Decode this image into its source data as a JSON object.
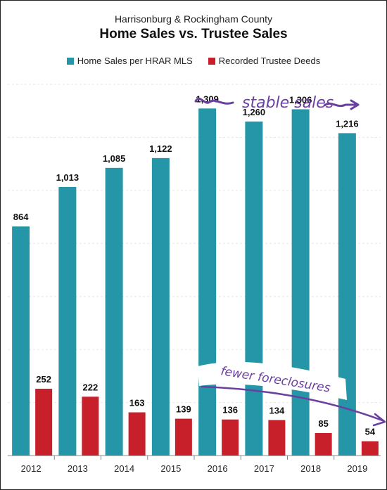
{
  "chart_data": {
    "type": "bar",
    "subtitle": "Harrisonburg & Rockingham County",
    "title": "Home Sales vs. Trustee Sales",
    "categories": [
      "2012",
      "2013",
      "2014",
      "2015",
      "2016",
      "2017",
      "2018",
      "2019"
    ],
    "series": [
      {
        "name": "Home Sales per HRAR MLS",
        "color": "#2596a8",
        "values": [
          864,
          1013,
          1085,
          1122,
          1309,
          1260,
          1306,
          1216
        ]
      },
      {
        "name": "Recorded Trustee Deeds",
        "color": "#c8202a",
        "values": [
          252,
          222,
          163,
          139,
          136,
          134,
          85,
          54
        ]
      }
    ],
    "value_labels": {
      "home_sales": [
        "864",
        "1,013",
        "1,085",
        "1,122",
        "1,309",
        "1,260",
        "1,306",
        "1,216"
      ],
      "trustee_deeds": [
        "252",
        "222",
        "163",
        "139",
        "136",
        "134",
        "85",
        "54"
      ]
    },
    "ylim": [
      0,
      1400
    ],
    "grid": true,
    "legend": "top-center",
    "annotations": {
      "stable": "stable sales",
      "fewer": "fewer foreclosures"
    },
    "annotation_color": "#6b3fa0"
  }
}
